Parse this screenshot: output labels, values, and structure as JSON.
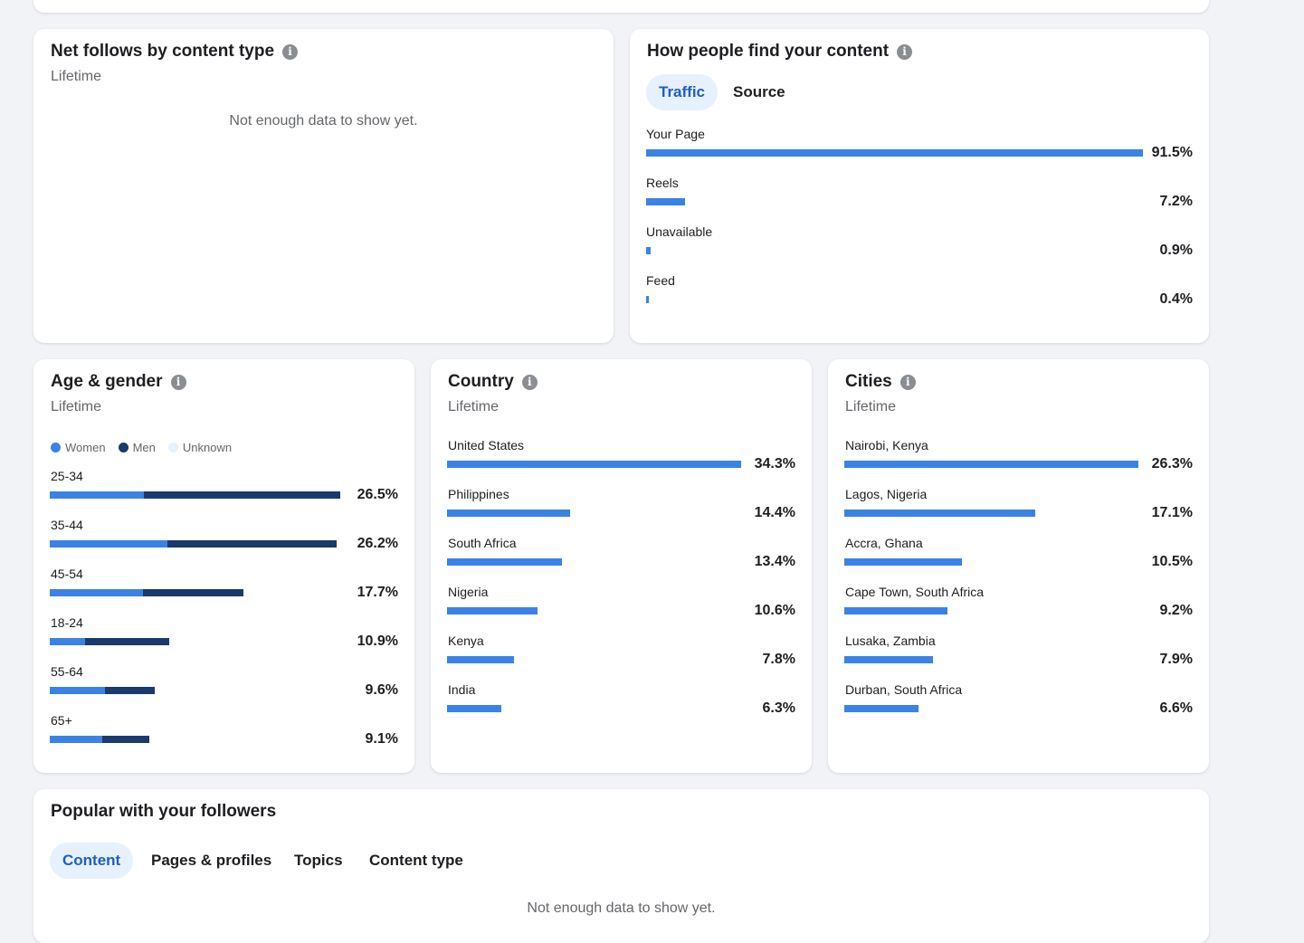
{
  "net_follows": {
    "title": "Net follows by content type",
    "subtitle": "Lifetime",
    "empty_message": "Not enough data to show yet."
  },
  "find_content": {
    "title": "How people find your content",
    "tabs": [
      {
        "label": "Traffic",
        "active": true
      },
      {
        "label": "Source",
        "active": false
      }
    ],
    "rows": [
      {
        "label": "Your Page",
        "value": "91.5%",
        "fraction": 0.915
      },
      {
        "label": "Reels",
        "value": "7.2%",
        "fraction": 0.072
      },
      {
        "label": "Unavailable",
        "value": "0.9%",
        "fraction": 0.009
      },
      {
        "label": "Feed",
        "value": "0.4%",
        "fraction": 0.004
      }
    ]
  },
  "age_gender": {
    "title": "Age & gender",
    "subtitle": "Lifetime",
    "legend": [
      {
        "label": "Women",
        "color": "#3b82e6"
      },
      {
        "label": "Men",
        "color": "#1a3a6e"
      },
      {
        "label": "Unknown",
        "color": "#e8f0fb"
      }
    ],
    "rows": [
      {
        "label": "25-34",
        "value": "26.5%",
        "total": 26.5,
        "women": 8.6
      },
      {
        "label": "35-44",
        "value": "26.2%",
        "total": 26.2,
        "women": 10.7
      },
      {
        "label": "45-54",
        "value": "17.7%",
        "total": 17.7,
        "women": 8.5
      },
      {
        "label": "18-24",
        "value": "10.9%",
        "total": 10.9,
        "women": 3.2
      },
      {
        "label": "55-64",
        "value": "9.6%",
        "total": 9.6,
        "women": 5.0
      },
      {
        "label": "65+",
        "value": "9.1%",
        "total": 9.1,
        "women": 4.8
      }
    ]
  },
  "country": {
    "title": "Country",
    "subtitle": "Lifetime",
    "rows": [
      {
        "label": "United States",
        "value": "34.3%",
        "pct": 34.3
      },
      {
        "label": "Philippines",
        "value": "14.4%",
        "pct": 14.4
      },
      {
        "label": "South Africa",
        "value": "13.4%",
        "pct": 13.4
      },
      {
        "label": "Nigeria",
        "value": "10.6%",
        "pct": 10.6
      },
      {
        "label": "Kenya",
        "value": "7.8%",
        "pct": 7.8
      },
      {
        "label": "India",
        "value": "6.3%",
        "pct": 6.3
      }
    ]
  },
  "cities": {
    "title": "Cities",
    "subtitle": "Lifetime",
    "rows": [
      {
        "label": "Nairobi, Kenya",
        "value": "26.3%",
        "pct": 26.3
      },
      {
        "label": "Lagos, Nigeria",
        "value": "17.1%",
        "pct": 17.1
      },
      {
        "label": "Accra, Ghana",
        "value": "10.5%",
        "pct": 10.5
      },
      {
        "label": "Cape Town, South Africa",
        "value": "9.2%",
        "pct": 9.2
      },
      {
        "label": "Lusaka, Zambia",
        "value": "7.9%",
        "pct": 7.9
      },
      {
        "label": "Durban, South Africa",
        "value": "6.6%",
        "pct": 6.6
      }
    ]
  },
  "popular": {
    "title": "Popular with your followers",
    "tabs": [
      {
        "label": "Content",
        "active": true
      },
      {
        "label": "Pages & profiles",
        "active": false
      },
      {
        "label": "Topics",
        "active": false
      },
      {
        "label": "Content type",
        "active": false
      }
    ],
    "empty_message": "Not enough data to show yet."
  },
  "colors": {
    "bar_primary": "#3b82e6",
    "bar_men": "#1a3a6e",
    "active_tab_bg": "#e7f0fd",
    "active_tab_text": "#1f5fbf"
  }
}
